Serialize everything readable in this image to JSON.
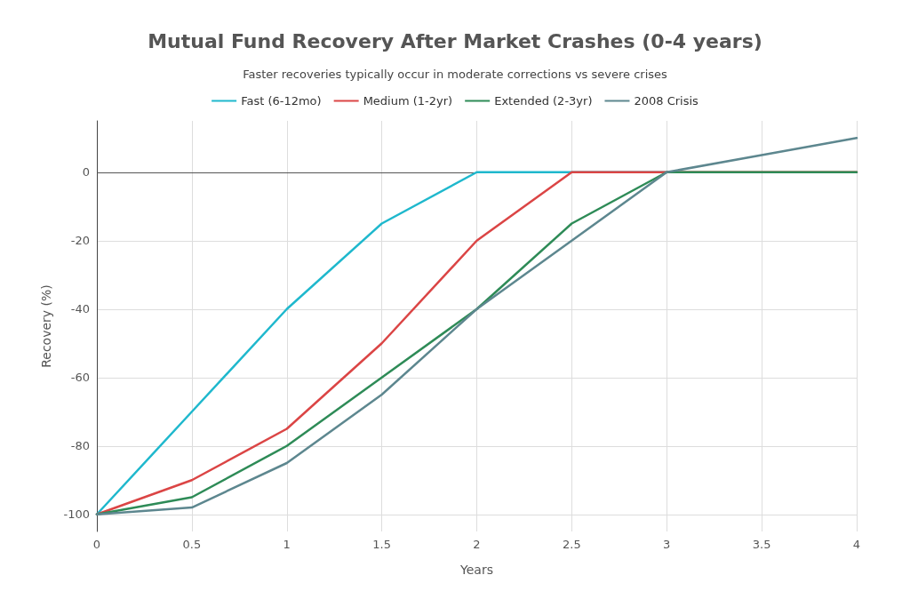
{
  "chart_data": {
    "type": "line",
    "title": "Mutual Fund Recovery After Market Crashes (0-4 years)",
    "subtitle": "Faster recoveries typically occur in moderate corrections vs severe crises",
    "xlabel": "Years",
    "ylabel": "Recovery (%)",
    "x": [
      0,
      0.5,
      1,
      1.5,
      2,
      2.5,
      3,
      3.5,
      4
    ],
    "series": [
      {
        "name": "Fast (6-12mo)",
        "color": "#1fb8cd",
        "values": [
          -100,
          -70,
          -40,
          -15,
          0,
          0,
          0,
          null,
          null
        ]
      },
      {
        "name": "Medium (1-2yr)",
        "color": "#db4545",
        "values": [
          -100,
          -90,
          -75,
          -50,
          -20,
          0,
          0,
          0,
          0
        ]
      },
      {
        "name": "Extended (2-3yr)",
        "color": "#2e8b57",
        "values": [
          -100,
          -95,
          -80,
          -60,
          -40,
          -15,
          0,
          0,
          0
        ]
      },
      {
        "name": "2008 Crisis",
        "color": "#5d878f",
        "values": [
          -100,
          -98,
          -85,
          -65,
          -40,
          -20,
          0,
          5,
          10
        ]
      }
    ],
    "xlim": [
      0,
      4
    ],
    "xticks": [
      0,
      0.5,
      1,
      1.5,
      2,
      2.5,
      3,
      3.5,
      4
    ],
    "ylim": [
      -105,
      15
    ],
    "yticks": [
      -100,
      -80,
      -60,
      -40,
      -20,
      0
    ],
    "ref_lines": [
      {
        "axis": "y",
        "value": 0,
        "color": "#555555"
      }
    ],
    "grid": true,
    "legend": "top",
    "marker": "none",
    "line_style": "solid"
  }
}
